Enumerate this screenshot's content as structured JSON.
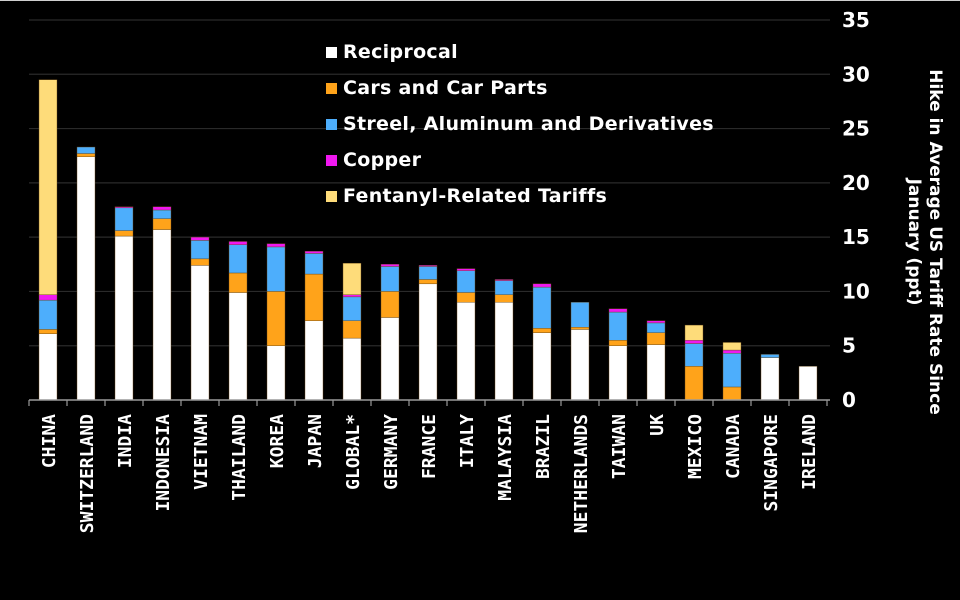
{
  "chart_data": {
    "type": "bar",
    "stacked": true,
    "title": "",
    "xlabel": "",
    "ylabel": "Hike in Average US Tariff Rate Since January (ppt)",
    "ylabel_lines": [
      "Hike in Average US Tariff Rate Since",
      "January (ppt)"
    ],
    "ylim": [
      0,
      35
    ],
    "yticks": [
      0,
      5,
      10,
      15,
      20,
      25,
      30,
      35
    ],
    "y_axis_side": "right",
    "grid": true,
    "legend_position": "top-center",
    "categories": [
      "CHINA",
      "SWITZERLAND",
      "INDIA",
      "INDONESIA",
      "VIETNAM",
      "THAILAND",
      "KOREA",
      "JAPAN",
      "GLOBAL*",
      "GERMANY",
      "FRANCE",
      "ITALY",
      "MALAYSIA",
      "BRAZIL",
      "NETHERLANDS",
      "TAIWAN",
      "UK",
      "MEXICO",
      "CANADA",
      "SINGAPORE",
      "IRELAND"
    ],
    "series": [
      {
        "name": "Reciprocal",
        "color": "#ffffff",
        "values": [
          6.1,
          22.4,
          15.1,
          15.7,
          12.4,
          9.9,
          5.0,
          7.3,
          5.7,
          7.6,
          10.7,
          9.0,
          9.0,
          6.2,
          6.5,
          5.0,
          5.1,
          0.0,
          0.0,
          3.9,
          3.1
        ]
      },
      {
        "name": "Cars and Car Parts",
        "color": "#ffa31a",
        "values": [
          0.4,
          0.3,
          0.5,
          1.0,
          0.6,
          1.8,
          5.0,
          4.3,
          1.6,
          2.4,
          0.4,
          0.9,
          0.7,
          0.4,
          0.2,
          0.5,
          1.1,
          3.1,
          1.2,
          0.0,
          0.0
        ]
      },
      {
        "name": "Streel, Aluminum and Derivatives",
        "color": "#4daefc",
        "values": [
          2.7,
          0.6,
          2.1,
          0.8,
          1.7,
          2.6,
          4.1,
          1.9,
          2.2,
          2.3,
          1.2,
          2.0,
          1.3,
          3.8,
          2.3,
          2.6,
          0.9,
          2.1,
          3.1,
          0.3,
          0.0
        ]
      },
      {
        "name": "Copper",
        "color": "#f018f0",
        "values": [
          0.5,
          0.0,
          0.1,
          0.3,
          0.3,
          0.3,
          0.3,
          0.2,
          0.2,
          0.2,
          0.1,
          0.2,
          0.1,
          0.3,
          0.0,
          0.3,
          0.2,
          0.3,
          0.3,
          0.0,
          0.0
        ]
      },
      {
        "name": "Fentanyl-Related Tariffs",
        "color": "#fedc7a",
        "values": [
          19.8,
          0.0,
          0.0,
          0.0,
          0.0,
          0.0,
          0.0,
          0.0,
          2.9,
          0.0,
          0.0,
          0.0,
          0.0,
          0.0,
          0.0,
          0.0,
          0.0,
          1.4,
          0.7,
          0.0,
          0.0
        ]
      }
    ]
  },
  "legend": {
    "items": [
      {
        "label": "Reciprocal",
        "color": "#ffffff"
      },
      {
        "label": "Cars and Car Parts",
        "color": "#ffa31a"
      },
      {
        "label": "Streel, Aluminum and Derivatives",
        "color": "#4daefc"
      },
      {
        "label": "Copper",
        "color": "#f018f0"
      },
      {
        "label": "Fentanyl-Related Tariffs",
        "color": "#fedc7a"
      }
    ]
  },
  "colors": {
    "background": "#000000",
    "grid": "#2a2a2a",
    "axis": "#9a9a9a",
    "text": "#ffffff"
  }
}
